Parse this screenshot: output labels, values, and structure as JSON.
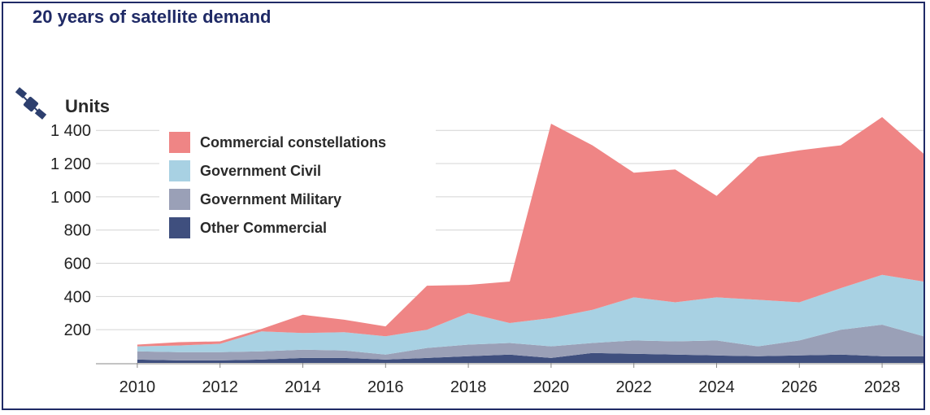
{
  "chart_data": {
    "type": "area",
    "title": "20 years of satellite demand",
    "ylabel": "Units",
    "xlabel": "",
    "stacked": true,
    "x": [
      2010,
      2011,
      2012,
      2013,
      2014,
      2015,
      2016,
      2017,
      2018,
      2019,
      2020,
      2021,
      2022,
      2023,
      2024,
      2025,
      2026,
      2027,
      2028,
      2029
    ],
    "x_tick_labels": [
      "2010",
      "2012",
      "2014",
      "2016",
      "2018",
      "2020",
      "2022",
      "2024",
      "2026",
      "2028"
    ],
    "y_tick_labels": [
      "200",
      "400",
      "600",
      "800",
      "1 000",
      "1 200",
      "1 400"
    ],
    "ylim": [
      0,
      1450
    ],
    "grid": true,
    "legend_position": "top-left",
    "series": [
      {
        "name": "Other Commercial",
        "color": "#3f4f7e",
        "values": [
          20,
          15,
          15,
          20,
          30,
          30,
          20,
          30,
          40,
          50,
          30,
          60,
          55,
          50,
          45,
          40,
          45,
          50,
          40,
          40
        ]
      },
      {
        "name": "Government Military",
        "color": "#9aa0b7",
        "values": [
          50,
          50,
          50,
          50,
          50,
          45,
          30,
          60,
          70,
          70,
          70,
          60,
          80,
          80,
          90,
          60,
          90,
          150,
          190,
          120
        ]
      },
      {
        "name": "Government Civil",
        "color": "#a8d1e3",
        "values": [
          30,
          40,
          50,
          120,
          100,
          110,
          110,
          110,
          190,
          120,
          170,
          200,
          260,
          235,
          260,
          280,
          230,
          250,
          300,
          330
        ]
      },
      {
        "name": "Commercial  constellations",
        "color": "#ef8585",
        "values": [
          10,
          20,
          15,
          15,
          110,
          75,
          60,
          265,
          170,
          250,
          1170,
          990,
          750,
          800,
          610,
          860,
          915,
          860,
          950,
          770
        ]
      }
    ]
  }
}
